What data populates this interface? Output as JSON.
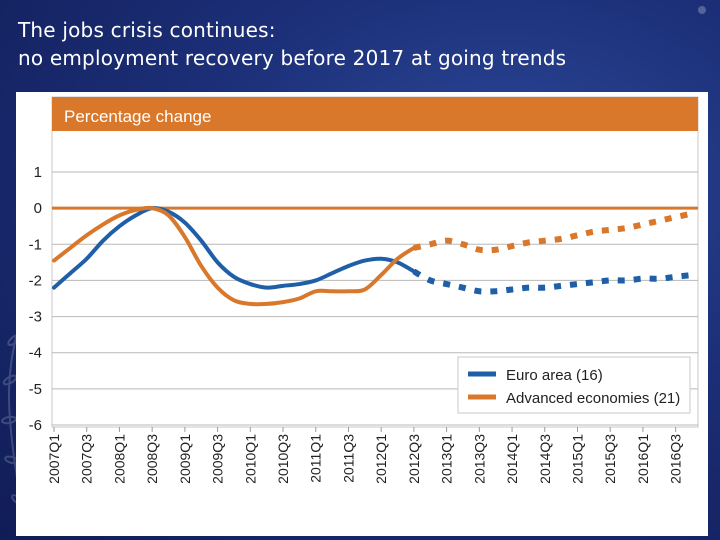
{
  "slide": {
    "title_line1": "The jobs crisis continues:",
    "title_line2": "no employment recovery before 2017 at going trends"
  },
  "colors": {
    "euro": "#1f5fa8",
    "advanced": "#d9772b",
    "header_bar": "#d9772b",
    "grid": "#b8b8b8"
  },
  "chart_data": {
    "type": "line",
    "header": "Percentage change",
    "ylim": [
      -6,
      1
    ],
    "yticks": [
      1,
      0,
      -1,
      -2,
      -3,
      -4,
      -5,
      -6
    ],
    "xticks": [
      "2007Q1",
      "2007Q3",
      "2008Q1",
      "2008Q3",
      "2009Q1",
      "2009Q3",
      "2010Q1",
      "2010Q3",
      "2011Q1",
      "2011Q3",
      "2012Q1",
      "2012Q3",
      "2013Q1",
      "2013Q3",
      "2014Q1",
      "2014Q3",
      "2015Q1",
      "2015Q3",
      "2016Q1",
      "2016Q3"
    ],
    "x": [
      "2007Q1",
      "2007Q2",
      "2007Q3",
      "2007Q4",
      "2008Q1",
      "2008Q2",
      "2008Q3",
      "2008Q4",
      "2009Q1",
      "2009Q2",
      "2009Q3",
      "2009Q4",
      "2010Q1",
      "2010Q2",
      "2010Q3",
      "2010Q4",
      "2011Q1",
      "2011Q2",
      "2011Q3",
      "2011Q4",
      "2012Q1",
      "2012Q2",
      "2012Q3",
      "2012Q4",
      "2013Q1",
      "2013Q2",
      "2013Q3",
      "2013Q4",
      "2014Q1",
      "2014Q2",
      "2014Q3",
      "2014Q4",
      "2015Q1",
      "2015Q2",
      "2015Q3",
      "2015Q4",
      "2016Q1",
      "2016Q2",
      "2016Q3",
      "2016Q4"
    ],
    "actual_end": "2012Q3",
    "series": [
      {
        "name": "Euro area (16)",
        "color_key": "euro",
        "values": [
          -2.2,
          -1.8,
          -1.4,
          -0.9,
          -0.5,
          -0.2,
          0.0,
          -0.1,
          -0.4,
          -0.9,
          -1.5,
          -1.9,
          -2.1,
          -2.2,
          -2.15,
          -2.1,
          -2.0,
          -1.8,
          -1.6,
          -1.45,
          -1.4,
          -1.5,
          -1.75,
          -2.0,
          -2.1,
          -2.2,
          -2.3,
          -2.3,
          -2.25,
          -2.2,
          -2.2,
          -2.15,
          -2.1,
          -2.05,
          -2.0,
          -2.0,
          -1.95,
          -1.95,
          -1.9,
          -1.85
        ]
      },
      {
        "name": "Advanced economies (21)",
        "color_key": "advanced",
        "values": [
          -1.45,
          -1.1,
          -0.75,
          -0.45,
          -0.2,
          -0.05,
          0.0,
          -0.2,
          -0.8,
          -1.6,
          -2.2,
          -2.55,
          -2.65,
          -2.65,
          -2.6,
          -2.5,
          -2.3,
          -2.3,
          -2.3,
          -2.25,
          -1.85,
          -1.4,
          -1.1,
          -1.0,
          -0.9,
          -1.0,
          -1.15,
          -1.15,
          -1.05,
          -0.95,
          -0.9,
          -0.85,
          -0.75,
          -0.65,
          -0.6,
          -0.55,
          -0.45,
          -0.35,
          -0.25,
          -0.15
        ]
      }
    ],
    "legend_position": "bottom-right",
    "grid": true
  }
}
